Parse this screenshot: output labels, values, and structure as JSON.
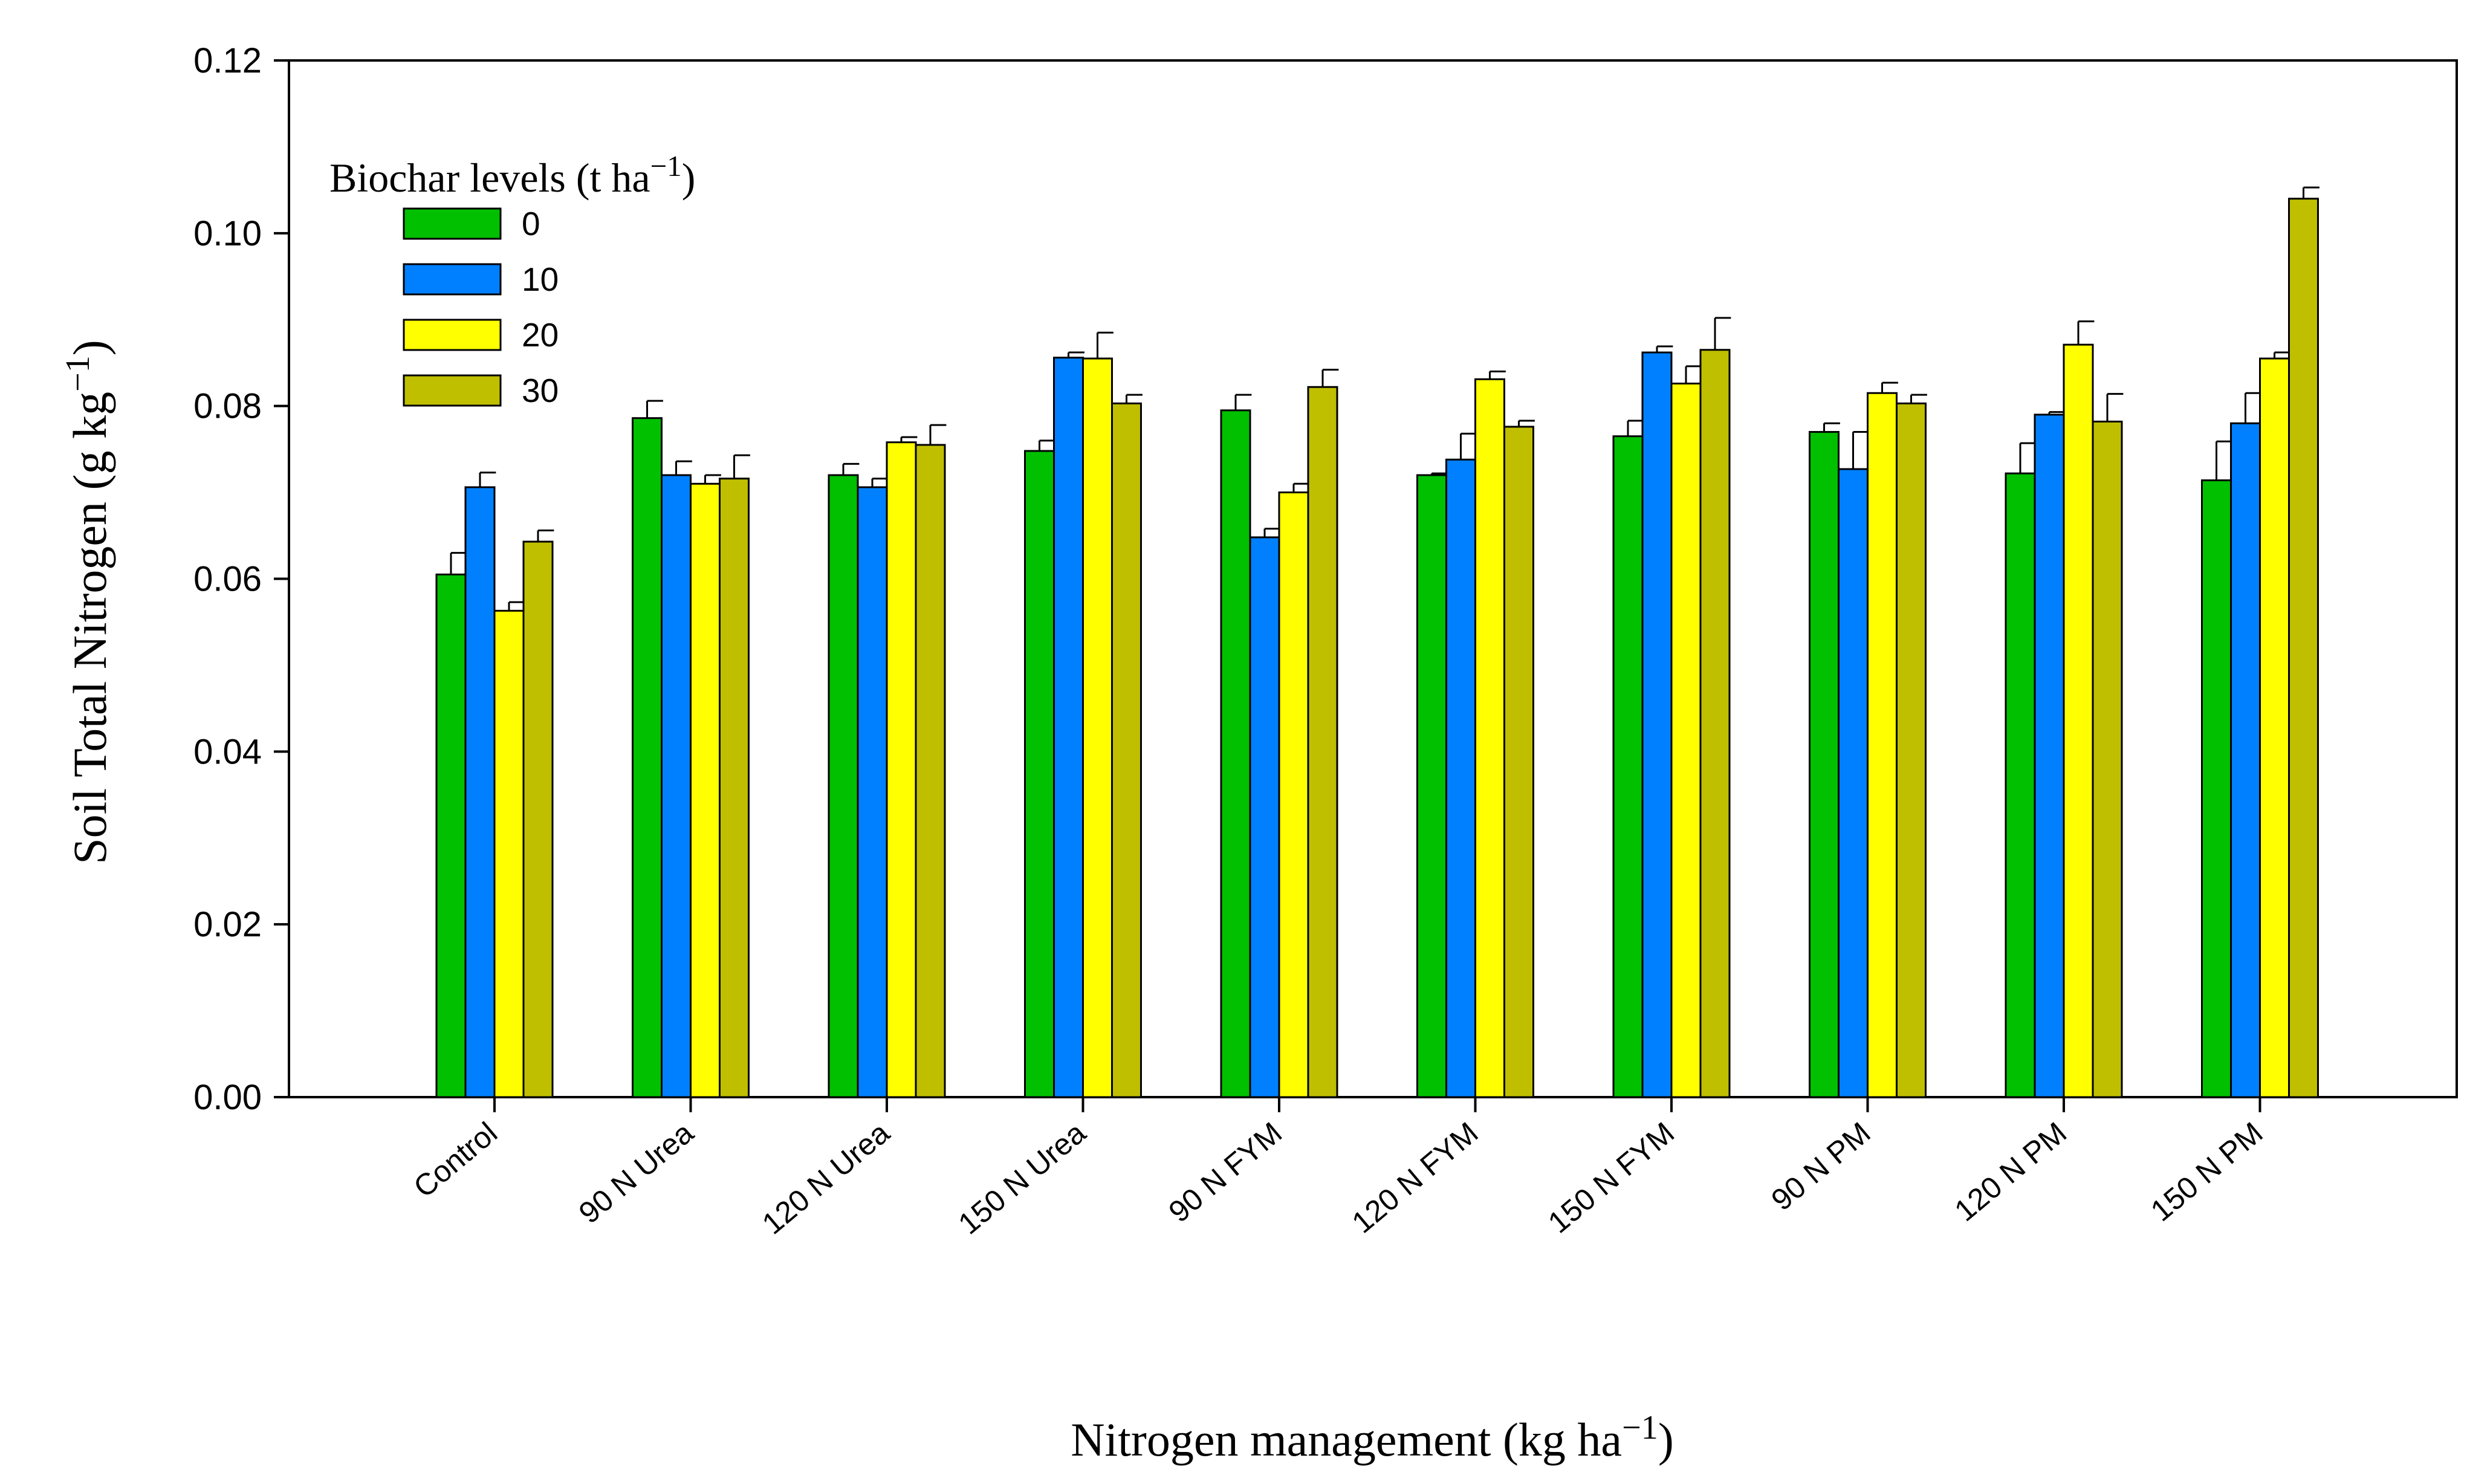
{
  "chart_data": {
    "type": "bar",
    "title": "",
    "xlabel_main": "Nitrogen management (kg ha",
    "xlabel_sup": "−1",
    "xlabel_close": ")",
    "ylabel_main": "Soil Total Nitrogen (g kg",
    "ylabel_sup": "−1",
    "ylabel_close": ")",
    "ylim": [
      0,
      0.12
    ],
    "yticks": [
      "0.00",
      "0.02",
      "0.04",
      "0.06",
      "0.08",
      "0.10",
      "0.12"
    ],
    "categories": [
      "Control",
      "90 N Urea",
      "120 N Urea",
      "150 N Urea",
      "90 N FYM",
      "120 N FYM",
      "150 N FYM",
      "90 N PM",
      "120 N PM",
      "150 N PM"
    ],
    "legend": {
      "title_main": "Biochar levels (t ha",
      "title_sup": "−1",
      "title_close": ")",
      "location": "top-left"
    },
    "series": [
      {
        "name": "0",
        "color": "#00c000",
        "values": [
          0.0605,
          0.0786,
          0.072,
          0.0748,
          0.0795,
          0.072,
          0.0765,
          0.077,
          0.0722,
          0.0714
        ],
        "errors": [
          0.0025,
          0.002,
          0.0013,
          0.0012,
          0.0018,
          0.0002,
          0.0018,
          0.001,
          0.0035,
          0.0045
        ]
      },
      {
        "name": "10",
        "color": "#0080ff",
        "values": [
          0.0706,
          0.072,
          0.0706,
          0.0856,
          0.0648,
          0.0738,
          0.0862,
          0.0727,
          0.079,
          0.078
        ],
        "errors": [
          0.0017,
          0.0016,
          0.001,
          0.0006,
          0.001,
          0.003,
          0.0007,
          0.0043,
          0.0003,
          0.0035
        ]
      },
      {
        "name": "20",
        "color": "#ffff00",
        "values": [
          0.0563,
          0.071,
          0.0758,
          0.0855,
          0.07,
          0.0831,
          0.0826,
          0.0815,
          0.0871,
          0.0855
        ],
        "errors": [
          0.001,
          0.001,
          0.0006,
          0.003,
          0.001,
          0.0009,
          0.002,
          0.0012,
          0.0027,
          0.0007
        ]
      },
      {
        "name": "30",
        "color": "#bfbf00",
        "values": [
          0.0643,
          0.0716,
          0.0755,
          0.0803,
          0.0822,
          0.0776,
          0.0865,
          0.0803,
          0.0782,
          0.104
        ],
        "errors": [
          0.0013,
          0.0027,
          0.0023,
          0.001,
          0.002,
          0.0007,
          0.0037,
          0.001,
          0.0032,
          0.0013
        ]
      }
    ]
  }
}
